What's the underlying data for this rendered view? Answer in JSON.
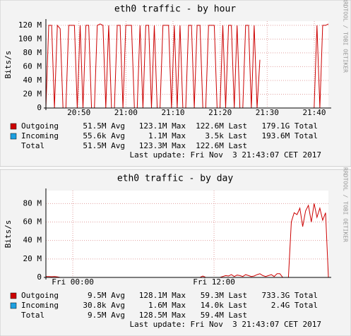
{
  "chart_data": [
    {
      "type": "line",
      "title": "eth0 traffic - by hour",
      "ylabel": "Bits/s",
      "credit": "RRDTOOL / TOBI OETIKER",
      "xlim": [
        "20:43",
        "21:43"
      ],
      "xticks": [
        "20:50",
        "21:00",
        "21:10",
        "21:20",
        "21:30",
        "21:40"
      ],
      "ylim": [
        0,
        126
      ],
      "yticks": [
        0,
        {
          "value": 20,
          "label": "20 M"
        },
        {
          "value": 40,
          "label": "40 M"
        },
        {
          "value": 60,
          "label": "60 M"
        },
        {
          "value": 80,
          "label": "80 M"
        },
        {
          "value": 100,
          "label": "100 M"
        },
        {
          "value": 120,
          "label": "120 M"
        }
      ],
      "grid": true,
      "series": [
        {
          "name": "Outgoing",
          "color": "#cc0000",
          "stats": [
            "51.5M Avg",
            "123.1M Max",
            "122.6M Last",
            "179.1G Total"
          ],
          "values": [
            0,
            120,
            120,
            0,
            120,
            115,
            0,
            0,
            120,
            120,
            120,
            0,
            120,
            0,
            120,
            120,
            0,
            0,
            120,
            122,
            120,
            0,
            120,
            0,
            0,
            120,
            120,
            0,
            120,
            120,
            120,
            0,
            0,
            120,
            0,
            120,
            120,
            0,
            120,
            0,
            0,
            120,
            120,
            120,
            0,
            120,
            0,
            120,
            0,
            0,
            120,
            120,
            0,
            120,
            120,
            0,
            0,
            120,
            120,
            120,
            0,
            0,
            120,
            0,
            120,
            120,
            0,
            120,
            0,
            0,
            120,
            120,
            0,
            120,
            0,
            70,
            null,
            null,
            null,
            null,
            null,
            null,
            null,
            null,
            null,
            null,
            null,
            null,
            null,
            null,
            null,
            null,
            null,
            null,
            0,
            120,
            0,
            120,
            120,
            122
          ]
        },
        {
          "name": "Incoming",
          "color": "#1fa0e0",
          "stats": [
            "55.6k Avg",
            "1.1M Max",
            "3.5k Last",
            "193.6M Total"
          ]
        }
      ],
      "total": {
        "name": "Total",
        "stats": [
          "51.5M Avg",
          "123.3M Max",
          "122.6M Last"
        ]
      },
      "footer": "Last update: Fri Nov  3 21:43:07 CET 2017"
    },
    {
      "type": "line",
      "title": "eth0 traffic - by day",
      "ylabel": "Bits/s",
      "credit": "RRDTOOL / TOBI OETIKER",
      "xlim": [
        "Thu 21:43",
        "Fri 21:43"
      ],
      "xticks": [
        "Fri 00:00",
        "Fri 12:00"
      ],
      "ylim": [
        0,
        94
      ],
      "yticks": [
        0,
        {
          "value": 20,
          "label": "20 M"
        },
        {
          "value": 40,
          "label": "40 M"
        },
        {
          "value": 60,
          "label": "60 M"
        },
        {
          "value": 80,
          "label": "80 M"
        }
      ],
      "grid": true,
      "series": [
        {
          "name": "Outgoing",
          "color": "#cc0000",
          "stats": [
            "9.5M Avg",
            "128.1M Max",
            "59.3M Last",
            "733.3G Total"
          ],
          "values": [
            1,
            1,
            0.8,
            1,
            0.5,
            0,
            0,
            0,
            0,
            0,
            0,
            0,
            0,
            0,
            0,
            0,
            0,
            0,
            0,
            0,
            0,
            0,
            0,
            0,
            0,
            0,
            0,
            0,
            0,
            0,
            0,
            0,
            0,
            0,
            0,
            0,
            0,
            0,
            0,
            0,
            0,
            0,
            0,
            0,
            0,
            0,
            0,
            0,
            0,
            0,
            0,
            0,
            0,
            0,
            0,
            1.5,
            0,
            0,
            0,
            0,
            0,
            0,
            1,
            2,
            1.5,
            3,
            1,
            2.5,
            2,
            1,
            3,
            2,
            1,
            1.5,
            3,
            4,
            2,
            1,
            2,
            3,
            1,
            4,
            4,
            0,
            0,
            0,
            60,
            70,
            68,
            75,
            55,
            72,
            78,
            60,
            80,
            65,
            75,
            62,
            70,
            0
          ],
          "value_labels": null
        },
        {
          "name": "Incoming",
          "color": "#1fa0e0",
          "stats": [
            "30.8k Avg",
            "1.6M Max",
            "14.0k Last",
            "2.4G Total"
          ]
        }
      ],
      "total": {
        "name": "Total",
        "stats": [
          "9.5M Avg",
          "128.5M Max",
          "59.4M Last"
        ]
      },
      "footer": "Last update: Fri Nov  3 21:43:07 CET 2017"
    }
  ]
}
